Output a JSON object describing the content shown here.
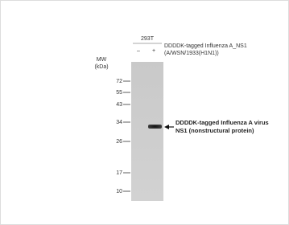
{
  "figure": {
    "cell_line": "293T",
    "lanes": [
      "–",
      "+"
    ],
    "antigen": [
      "DDDDK-tagged Influenza A_NS1",
      "(A/WSN/1933(H1N1))"
    ],
    "mw_label": [
      "MW",
      "(kDa)"
    ],
    "markers": [
      "72",
      "55",
      "43",
      "34",
      "26",
      "17",
      "10"
    ],
    "annotation": [
      "DDDDK-tagged  Influenza A virus",
      "NS1 (nonstructural  protein)"
    ]
  }
}
